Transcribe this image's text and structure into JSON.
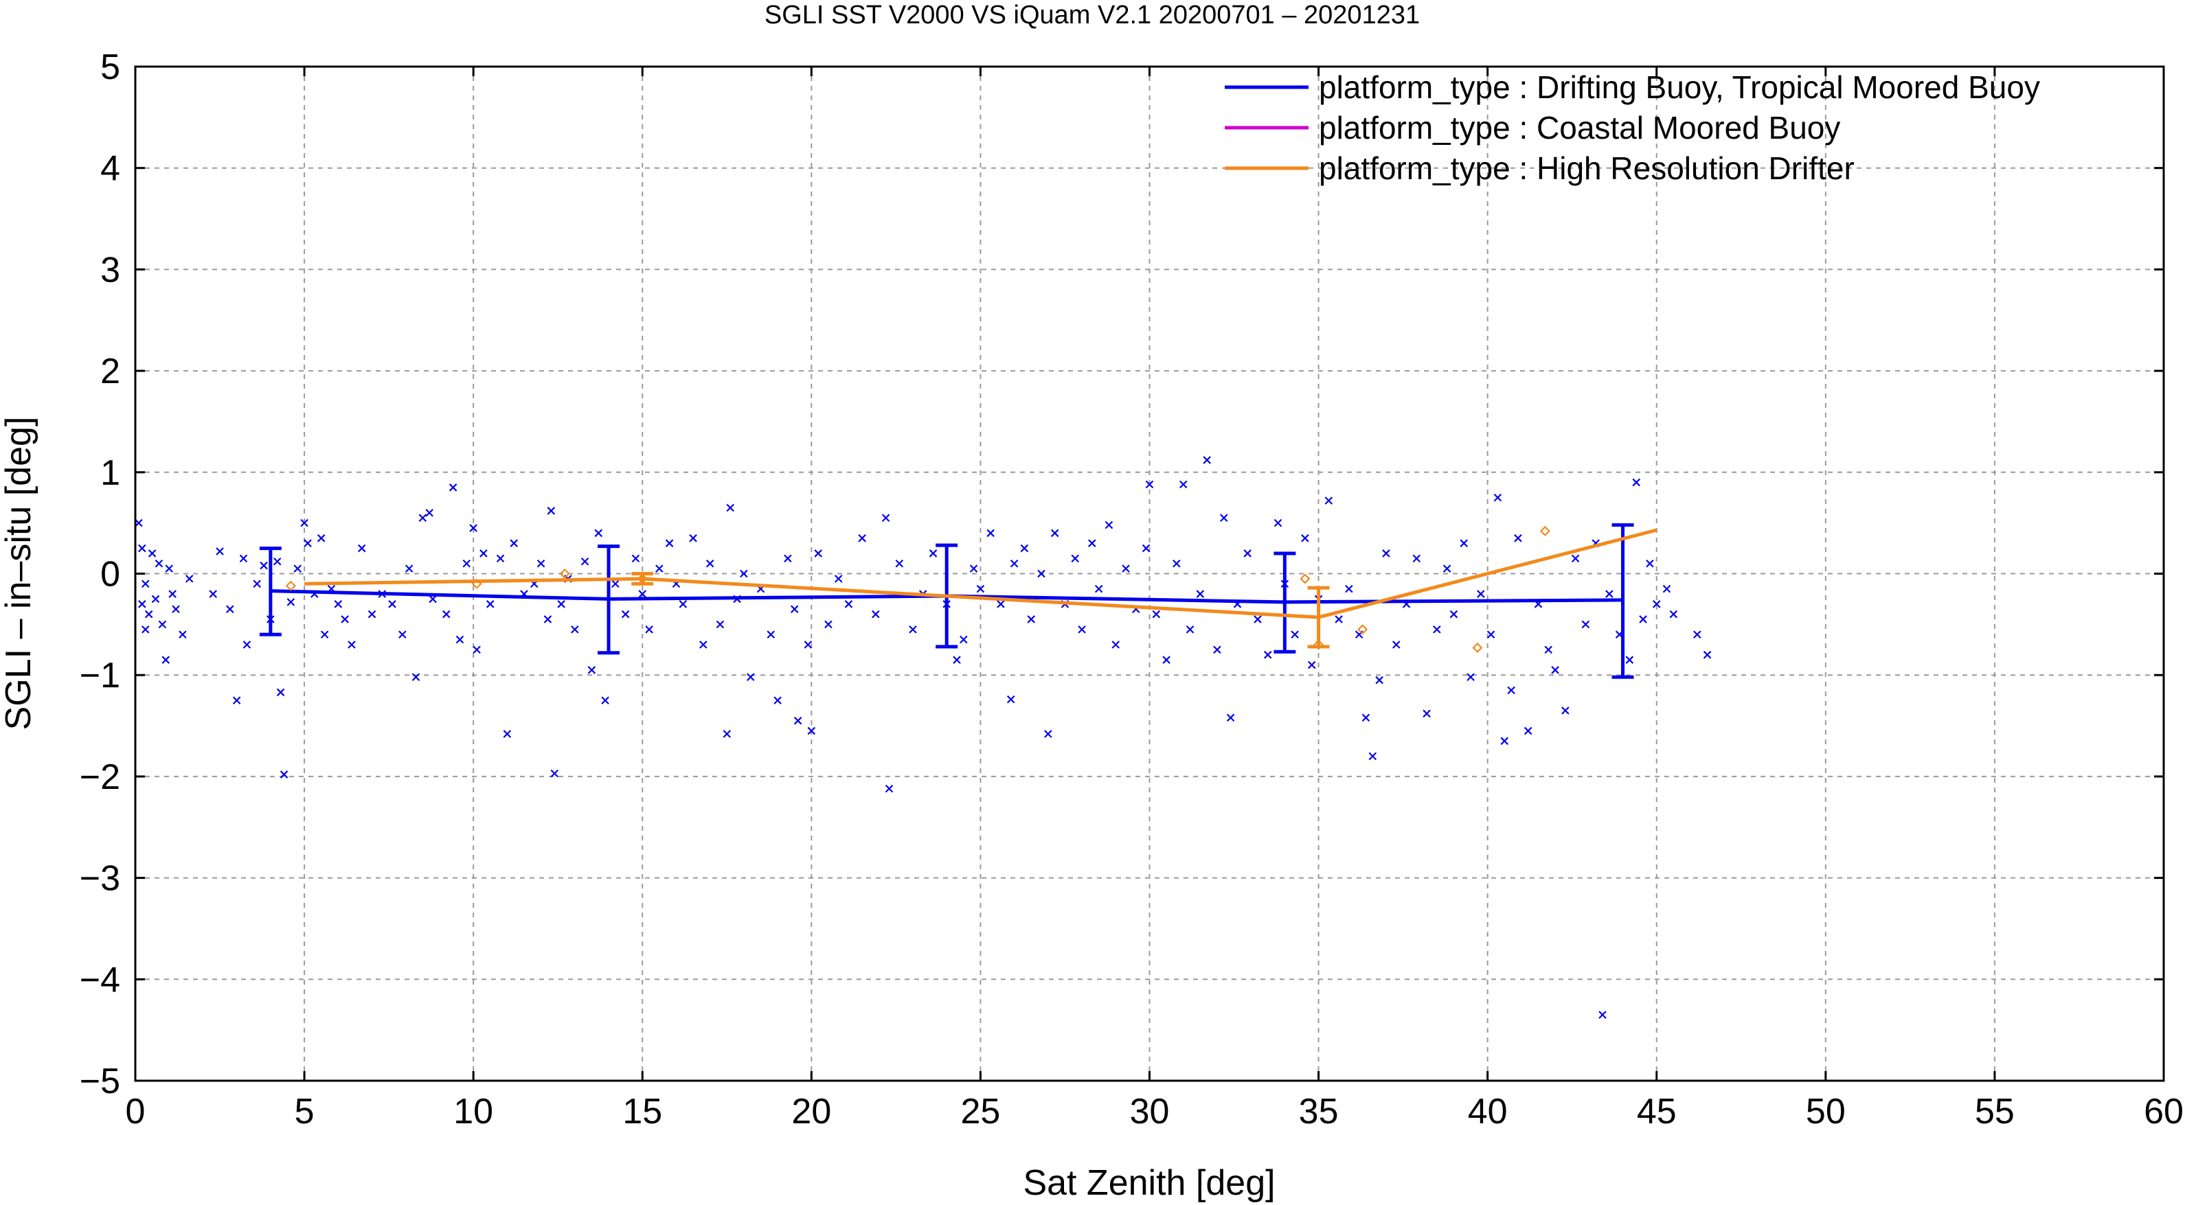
{
  "chart_data": {
    "type": "scatter",
    "title": "SGLI SST V2000 VS iQuam V2.1 20200701 – 20201231",
    "xlabel": "Sat Zenith [deg]",
    "ylabel": "SGLI – in–situ [deg]",
    "xlim": [
      0,
      60
    ],
    "ylim": [
      -5,
      5
    ],
    "xticks": [
      0,
      5,
      10,
      15,
      20,
      25,
      30,
      35,
      40,
      45,
      50,
      55,
      60
    ],
    "xtick_labels": [
      "0",
      "5",
      "10",
      "15",
      "20",
      "25",
      "30",
      "35",
      "40",
      "45",
      "50",
      "55",
      "60"
    ],
    "yticks": [
      -5,
      -4,
      -3,
      -2,
      -1,
      0,
      1,
      2,
      3,
      4,
      5
    ],
    "ytick_labels": [
      "−5",
      "−4",
      "−3",
      "−2",
      "−1",
      "0",
      "1",
      "2",
      "3",
      "4",
      "5"
    ],
    "grid": true,
    "legend_position": "top-right",
    "series": [
      {
        "name": "platform_type : Drifting Buoy, Tropical Moored Buoy",
        "color": "#0000ee",
        "marker": "x",
        "mean_line": {
          "x": [
            4,
            14,
            24,
            34,
            44
          ],
          "y": [
            -0.17,
            -0.25,
            -0.22,
            -0.28,
            -0.26
          ]
        },
        "error_bars": [
          {
            "x": 4,
            "low": -0.6,
            "high": 0.25
          },
          {
            "x": 14,
            "low": -0.78,
            "high": 0.27
          },
          {
            "x": 24,
            "low": -0.72,
            "high": 0.28
          },
          {
            "x": 34,
            "low": -0.77,
            "high": 0.2
          },
          {
            "x": 44,
            "low": -1.02,
            "high": 0.48
          }
        ],
        "points": [
          [
            0.1,
            0.5
          ],
          [
            0.2,
            0.25
          ],
          [
            0.2,
            -0.3
          ],
          [
            0.3,
            -0.55
          ],
          [
            0.3,
            -0.1
          ],
          [
            0.4,
            -0.4
          ],
          [
            0.5,
            0.2
          ],
          [
            0.6,
            -0.25
          ],
          [
            0.7,
            0.1
          ],
          [
            0.8,
            -0.5
          ],
          [
            0.9,
            -0.85
          ],
          [
            1.0,
            0.05
          ],
          [
            1.1,
            -0.2
          ],
          [
            1.2,
            -0.35
          ],
          [
            1.4,
            -0.6
          ],
          [
            1.6,
            -0.05
          ],
          [
            2.3,
            -0.2
          ],
          [
            2.5,
            0.22
          ],
          [
            2.8,
            -0.35
          ],
          [
            3.0,
            -1.25
          ],
          [
            3.2,
            0.15
          ],
          [
            3.3,
            -0.7
          ],
          [
            3.6,
            -0.1
          ],
          [
            3.8,
            0.08
          ],
          [
            4.0,
            -0.45
          ],
          [
            4.2,
            0.12
          ],
          [
            4.3,
            -1.17
          ],
          [
            4.4,
            -1.98
          ],
          [
            4.6,
            -0.28
          ],
          [
            4.8,
            0.05
          ],
          [
            5.0,
            0.5
          ],
          [
            5.1,
            0.3
          ],
          [
            5.3,
            -0.2
          ],
          [
            5.5,
            0.35
          ],
          [
            5.6,
            -0.6
          ],
          [
            5.8,
            -0.15
          ],
          [
            6.0,
            -0.3
          ],
          [
            6.2,
            -0.45
          ],
          [
            6.4,
            -0.7
          ],
          [
            6.7,
            0.25
          ],
          [
            7.0,
            -0.4
          ],
          [
            7.3,
            -0.2
          ],
          [
            7.6,
            -0.3
          ],
          [
            7.9,
            -0.6
          ],
          [
            8.1,
            0.05
          ],
          [
            8.3,
            -1.02
          ],
          [
            8.5,
            0.55
          ],
          [
            8.7,
            0.6
          ],
          [
            8.8,
            -0.25
          ],
          [
            9.2,
            -0.4
          ],
          [
            9.4,
            0.85
          ],
          [
            9.6,
            -0.65
          ],
          [
            9.8,
            0.1
          ],
          [
            10.0,
            0.45
          ],
          [
            10.1,
            -0.75
          ],
          [
            10.3,
            0.2
          ],
          [
            10.5,
            -0.3
          ],
          [
            10.8,
            0.15
          ],
          [
            11.0,
            -1.58
          ],
          [
            11.2,
            0.3
          ],
          [
            11.5,
            -0.2
          ],
          [
            11.8,
            -0.1
          ],
          [
            12.0,
            0.1
          ],
          [
            12.2,
            -0.45
          ],
          [
            12.3,
            0.62
          ],
          [
            12.4,
            -1.97
          ],
          [
            12.6,
            -0.3
          ],
          [
            12.8,
            -0.05
          ],
          [
            13.0,
            -0.55
          ],
          [
            13.3,
            0.12
          ],
          [
            13.5,
            -0.95
          ],
          [
            13.7,
            0.4
          ],
          [
            13.9,
            -1.25
          ],
          [
            14.2,
            -0.1
          ],
          [
            14.5,
            -0.4
          ],
          [
            14.8,
            0.15
          ],
          [
            15.0,
            -0.2
          ],
          [
            15.2,
            -0.55
          ],
          [
            15.5,
            0.05
          ],
          [
            15.8,
            0.3
          ],
          [
            16.0,
            -0.1
          ],
          [
            16.2,
            -0.3
          ],
          [
            16.5,
            0.35
          ],
          [
            16.8,
            -0.7
          ],
          [
            17.0,
            0.1
          ],
          [
            17.3,
            -0.5
          ],
          [
            17.5,
            -1.58
          ],
          [
            17.6,
            0.65
          ],
          [
            17.8,
            -0.25
          ],
          [
            18.0,
            0.0
          ],
          [
            18.2,
            -1.02
          ],
          [
            18.5,
            -0.15
          ],
          [
            18.8,
            -0.6
          ],
          [
            19.0,
            -1.25
          ],
          [
            19.3,
            0.15
          ],
          [
            19.5,
            -0.35
          ],
          [
            19.6,
            -1.45
          ],
          [
            19.9,
            -0.7
          ],
          [
            20.0,
            -1.55
          ],
          [
            20.2,
            0.2
          ],
          [
            20.5,
            -0.5
          ],
          [
            20.8,
            -0.05
          ],
          [
            21.1,
            -0.3
          ],
          [
            21.5,
            0.35
          ],
          [
            21.9,
            -0.4
          ],
          [
            22.2,
            0.55
          ],
          [
            22.3,
            -2.12
          ],
          [
            22.6,
            0.1
          ],
          [
            23.0,
            -0.55
          ],
          [
            23.3,
            -0.2
          ],
          [
            23.6,
            0.2
          ],
          [
            24.0,
            -0.3
          ],
          [
            24.3,
            -0.85
          ],
          [
            24.5,
            -0.65
          ],
          [
            24.8,
            0.05
          ],
          [
            25.0,
            -0.15
          ],
          [
            25.3,
            0.4
          ],
          [
            25.6,
            -0.3
          ],
          [
            25.9,
            -1.24
          ],
          [
            26.0,
            0.1
          ],
          [
            26.3,
            0.25
          ],
          [
            26.5,
            -0.45
          ],
          [
            26.8,
            0.0
          ],
          [
            27.0,
            -1.58
          ],
          [
            27.2,
            0.4
          ],
          [
            27.5,
            -0.3
          ],
          [
            27.8,
            0.15
          ],
          [
            28.0,
            -0.55
          ],
          [
            28.3,
            0.3
          ],
          [
            28.5,
            -0.15
          ],
          [
            28.8,
            0.48
          ],
          [
            29.0,
            -0.7
          ],
          [
            29.3,
            0.05
          ],
          [
            29.6,
            -0.35
          ],
          [
            29.9,
            0.25
          ],
          [
            30.0,
            0.88
          ],
          [
            30.2,
            -0.4
          ],
          [
            30.5,
            -0.85
          ],
          [
            30.8,
            0.1
          ],
          [
            31.0,
            0.88
          ],
          [
            31.2,
            -0.55
          ],
          [
            31.5,
            -0.2
          ],
          [
            31.7,
            1.12
          ],
          [
            32.0,
            -0.75
          ],
          [
            32.2,
            0.55
          ],
          [
            32.4,
            -1.42
          ],
          [
            32.6,
            -0.3
          ],
          [
            32.9,
            0.2
          ],
          [
            33.2,
            -0.45
          ],
          [
            33.5,
            -0.8
          ],
          [
            33.8,
            0.5
          ],
          [
            34.0,
            -0.1
          ],
          [
            34.3,
            -0.6
          ],
          [
            34.6,
            0.35
          ],
          [
            34.8,
            -0.9
          ],
          [
            35.0,
            -0.25
          ],
          [
            35.3,
            0.72
          ],
          [
            35.6,
            -0.45
          ],
          [
            35.9,
            -0.15
          ],
          [
            36.2,
            -0.6
          ],
          [
            36.4,
            -1.42
          ],
          [
            36.6,
            -1.8
          ],
          [
            36.8,
            -1.05
          ],
          [
            37.0,
            0.2
          ],
          [
            37.3,
            -0.7
          ],
          [
            37.6,
            -0.3
          ],
          [
            37.9,
            0.15
          ],
          [
            38.2,
            -1.38
          ],
          [
            38.5,
            -0.55
          ],
          [
            38.8,
            0.05
          ],
          [
            39.0,
            -0.4
          ],
          [
            39.3,
            0.3
          ],
          [
            39.5,
            -1.02
          ],
          [
            39.8,
            -0.2
          ],
          [
            40.1,
            -0.6
          ],
          [
            40.3,
            0.75
          ],
          [
            40.5,
            -1.65
          ],
          [
            40.7,
            -1.15
          ],
          [
            40.9,
            0.35
          ],
          [
            41.2,
            -1.55
          ],
          [
            41.5,
            -0.3
          ],
          [
            41.8,
            -0.75
          ],
          [
            42.0,
            -0.95
          ],
          [
            42.3,
            -1.35
          ],
          [
            42.6,
            0.15
          ],
          [
            42.9,
            -0.5
          ],
          [
            43.2,
            0.3
          ],
          [
            43.4,
            -4.35
          ],
          [
            43.6,
            -0.2
          ],
          [
            43.9,
            -0.6
          ],
          [
            44.2,
            -0.85
          ],
          [
            44.4,
            0.9
          ],
          [
            44.6,
            -0.45
          ],
          [
            44.8,
            0.1
          ],
          [
            45.0,
            -0.3
          ],
          [
            45.3,
            -0.15
          ],
          [
            45.5,
            -0.4
          ],
          [
            46.2,
            -0.6
          ],
          [
            46.5,
            -0.8
          ]
        ]
      },
      {
        "name": "platform_type : Coastal Moored Buoy",
        "color": "#d000d0",
        "marker": "line",
        "mean_line": {
          "x": [],
          "y": []
        },
        "points": []
      },
      {
        "name": "platform_type : High Resolution Drifter",
        "color": "#f28a1c",
        "marker": "diamond",
        "mean_line": {
          "x": [
            5,
            15,
            35,
            45
          ],
          "y": [
            -0.1,
            -0.05,
            -0.43,
            0.43
          ]
        },
        "error_bars": [
          {
            "x": 15,
            "low": -0.1,
            "high": 0.0
          },
          {
            "x": 35,
            "low": -0.72,
            "high": -0.14
          }
        ],
        "points": [
          [
            4.6,
            -0.12
          ],
          [
            10.1,
            -0.1
          ],
          [
            12.7,
            0.0
          ],
          [
            15.0,
            -0.05
          ],
          [
            34.6,
            -0.05
          ],
          [
            35.0,
            -0.7
          ],
          [
            36.3,
            -0.55
          ],
          [
            39.7,
            -0.73
          ],
          [
            41.7,
            0.42
          ]
        ]
      }
    ]
  }
}
